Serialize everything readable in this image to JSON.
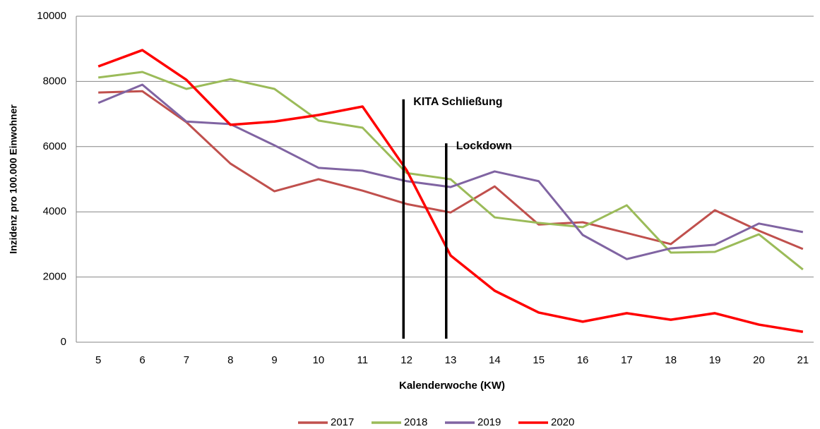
{
  "chart_data": {
    "type": "line",
    "x_label": "Kalenderwoche (KW)",
    "y_label": "Inzidenz pro 100.000 Einwohner",
    "x": [
      5,
      6,
      7,
      8,
      9,
      10,
      11,
      12,
      13,
      14,
      15,
      16,
      17,
      18,
      19,
      20,
      21
    ],
    "xlim": [
      4.5,
      21.5
    ],
    "xticks": [
      5,
      6,
      7,
      8,
      9,
      10,
      11,
      12,
      13,
      14,
      15,
      16,
      17,
      18,
      19,
      20,
      21
    ],
    "ylim": [
      0,
      10000
    ],
    "yticks": [
      0,
      2000,
      4000,
      6000,
      8000,
      10000
    ],
    "grid": true,
    "legend": "bottom",
    "series": [
      {
        "name": "2017",
        "color": "#c0504d",
        "values": [
          7660,
          7700,
          6750,
          5480,
          4630,
          5000,
          4650,
          4240,
          3980,
          4780,
          3610,
          3680,
          3350,
          3010,
          4050,
          3420,
          2860
        ]
      },
      {
        "name": "2018",
        "color": "#9bbb59",
        "values": [
          8120,
          8290,
          7770,
          8070,
          7770,
          6800,
          6580,
          5190,
          5000,
          3830,
          3660,
          3530,
          4200,
          2750,
          2770,
          3310,
          2230
        ]
      },
      {
        "name": "2019",
        "color": "#8064a2",
        "values": [
          7340,
          7900,
          6770,
          6690,
          6040,
          5350,
          5260,
          4940,
          4760,
          5240,
          4940,
          3290,
          2550,
          2880,
          2990,
          3640,
          3380
        ]
      },
      {
        "name": "2020",
        "color": "#ff0000",
        "values": [
          8460,
          8960,
          8050,
          6670,
          6770,
          6970,
          7230,
          5280,
          2660,
          1580,
          910,
          630,
          890,
          690,
          890,
          540,
          320
        ]
      }
    ],
    "annotations": [
      {
        "label": "KITA Schließung",
        "x": 11.93,
        "y": 7450
      },
      {
        "label": "Lockdown",
        "x": 12.9,
        "y": 6100
      }
    ]
  }
}
